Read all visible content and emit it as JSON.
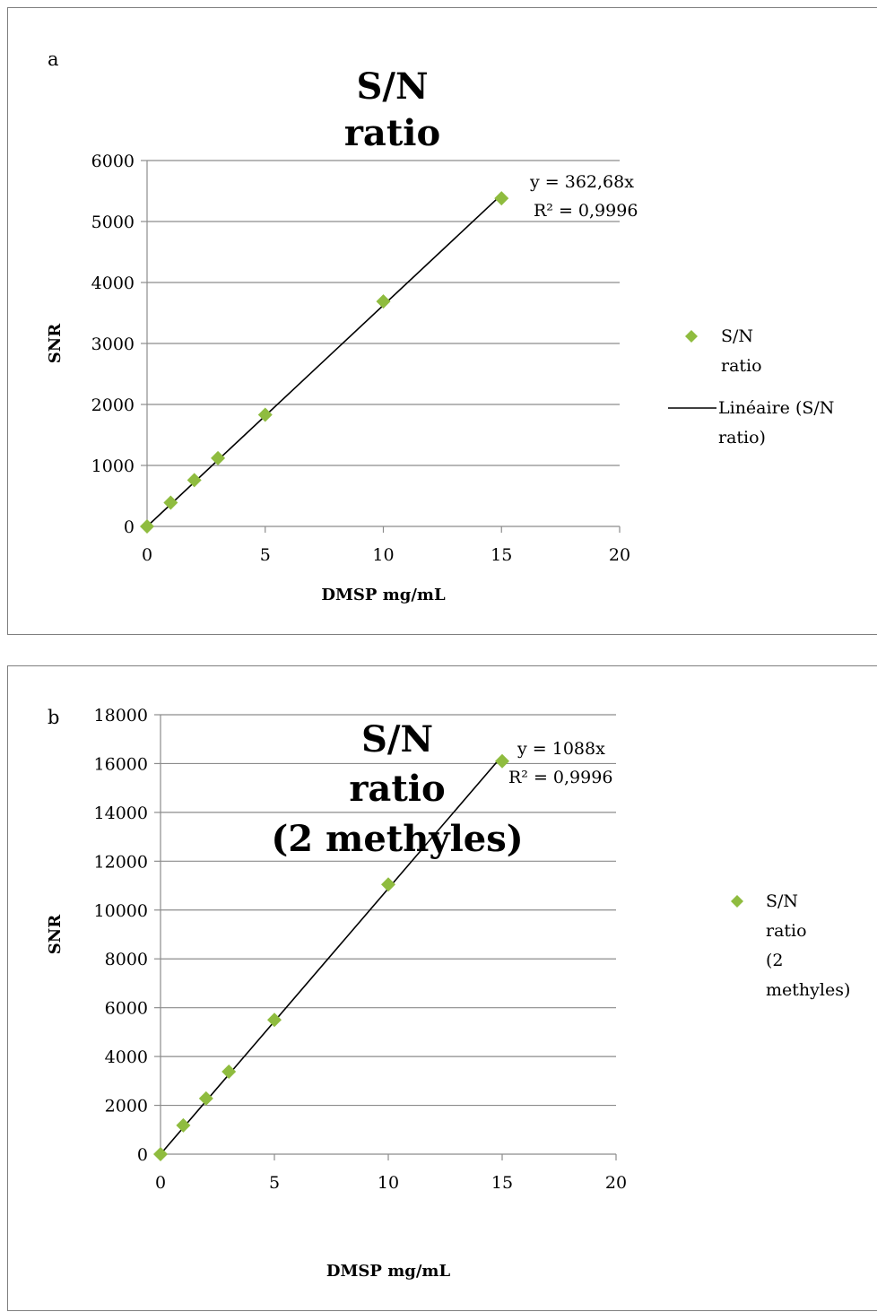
{
  "chart_data": [
    {
      "panel_letter": "a",
      "type": "scatter",
      "title_lines": [
        "S/N",
        "ratio"
      ],
      "xlabel": "DMSP mg/mL",
      "ylabel": "SNR",
      "xlim": [
        0,
        20
      ],
      "ylim": [
        0,
        6000
      ],
      "xticks": [
        0,
        5,
        10,
        15,
        20
      ],
      "yticks": [
        0,
        1000,
        2000,
        3000,
        4000,
        5000,
        6000
      ],
      "grid": "horizontal",
      "legend_position": "right",
      "marker_color": "#8fbc3f",
      "line_color": "#000000",
      "series": [
        {
          "name_lines": [
            "S/N",
            "ratio"
          ],
          "x": [
            0,
            1,
            2,
            3,
            5,
            10,
            15
          ],
          "y": [
            0,
            390,
            760,
            1120,
            1830,
            3690,
            5380
          ]
        }
      ],
      "trendline": {
        "slope": 362.68,
        "name_lines": [
          "Linéaire (S/N",
          "ratio)"
        ],
        "equation": "y = 362,68x",
        "r2": "R² = 0,9996"
      }
    },
    {
      "panel_letter": "b",
      "type": "scatter",
      "title_lines": [
        "S/N",
        "ratio",
        "(2 methyles)"
      ],
      "xlabel": "DMSP mg/mL",
      "ylabel": "SNR",
      "xlim": [
        0,
        20
      ],
      "ylim": [
        0,
        18000
      ],
      "xticks": [
        0,
        5,
        10,
        15,
        20
      ],
      "yticks": [
        0,
        2000,
        4000,
        6000,
        8000,
        10000,
        12000,
        14000,
        16000,
        18000
      ],
      "grid": "horizontal",
      "legend_position": "right",
      "marker_color": "#8fbc3f",
      "line_color": "#000000",
      "series": [
        {
          "name_lines": [
            "S/N",
            "ratio",
            "(2",
            "methyles)"
          ],
          "x": [
            0,
            1,
            2,
            3,
            5,
            10,
            15
          ],
          "y": [
            0,
            1180,
            2280,
            3380,
            5500,
            11050,
            16100
          ]
        }
      ],
      "trendline": {
        "slope": 1088,
        "equation": "y = 1088x",
        "r2": "R² = 0,9996"
      }
    }
  ]
}
